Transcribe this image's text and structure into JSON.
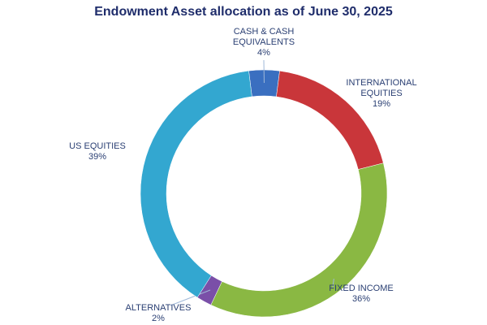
{
  "chart_data": {
    "type": "donut",
    "title": "Endowment Asset allocation as of June 30, 2025",
    "categories": [
      "CASH & CASH EQUIVALENTS",
      "INTERNATIONAL EQUITIES",
      "FIXED INCOME",
      "ALTERNATIVES",
      "US EQUITIES"
    ],
    "values": [
      4,
      19,
      36,
      2,
      39
    ],
    "value_labels": [
      "4%",
      "19%",
      "36%",
      "2%",
      "39%"
    ],
    "colors": [
      "#3a6fc0",
      "#c9363a",
      "#8ab843",
      "#7a4fa8",
      "#33a7d0"
    ]
  }
}
